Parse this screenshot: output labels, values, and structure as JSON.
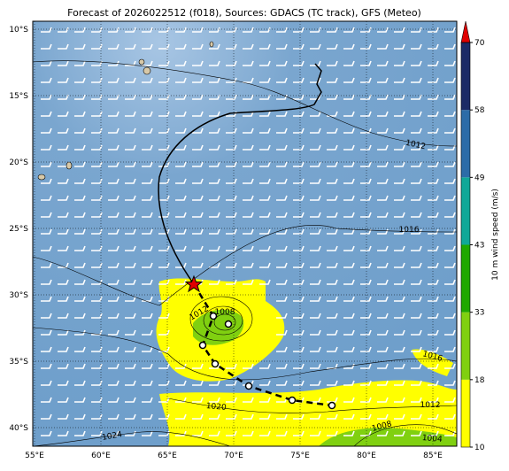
{
  "title": "Forecast of 2026022512 (f018), Sources: GDACS (TC track), GFS (Meteo)",
  "map": {
    "lon_labels": [
      "55°E",
      "60°E",
      "65°E",
      "70°E",
      "75°E",
      "80°E",
      "85°E"
    ],
    "lat_labels": [
      "10°S",
      "15°S",
      "20°S",
      "25°S",
      "30°S",
      "35°S",
      "40°S"
    ],
    "isobar_labels": [
      "1012",
      "1016",
      "1012",
      "1008",
      "1016",
      "1020",
      "1012",
      "1008",
      "1004",
      "1024"
    ]
  },
  "colorbar": {
    "label": "10 m wind speed (m/s)",
    "ticks": [
      10,
      18,
      33,
      43,
      49,
      58,
      70
    ],
    "colors": [
      "#ffff00",
      "#80d010",
      "#20a800",
      "#10a898",
      "#2c6ca8",
      "#1c2a66"
    ],
    "extend_color": "#e00000"
  }
}
